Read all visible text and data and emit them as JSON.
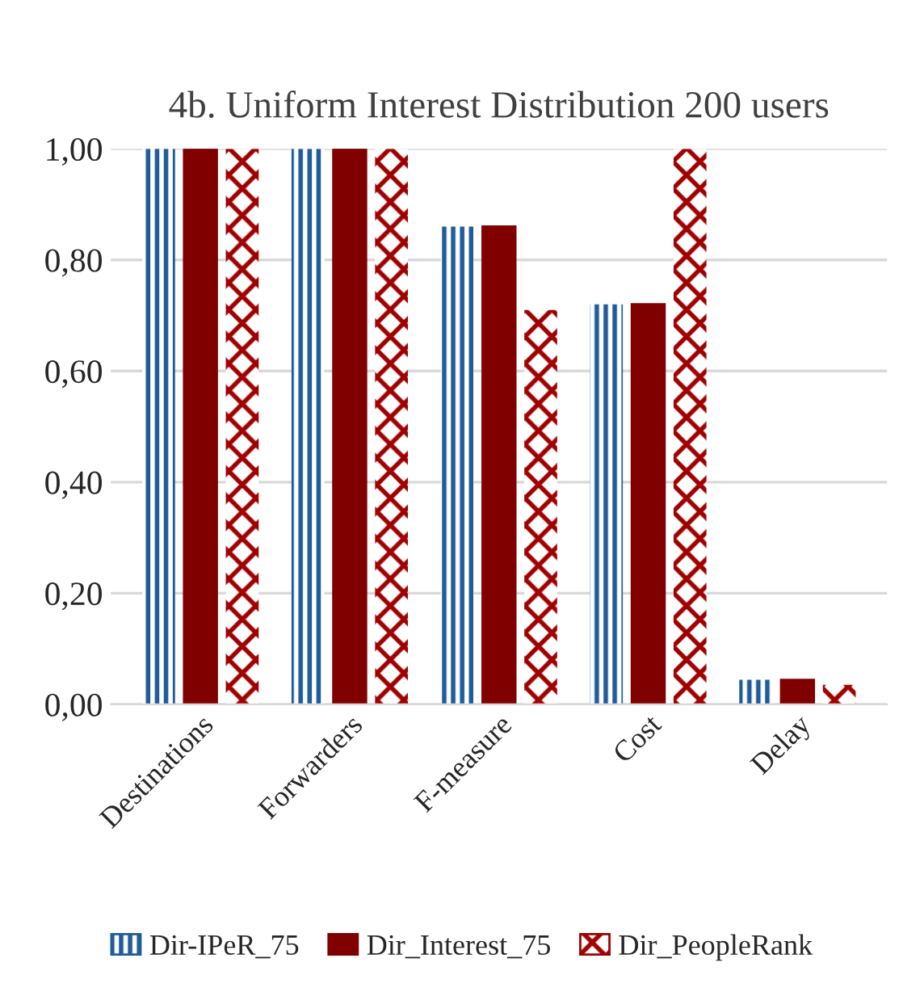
{
  "chart_data": {
    "type": "bar",
    "title": "4b. Uniform Interest Distribution 200 users",
    "categories": [
      "Destinations",
      "Forwarders",
      "F-measure",
      "Cost",
      "Delay"
    ],
    "series": [
      {
        "name": "Dir-IPeR_75",
        "color": "#1f5c99",
        "values": [
          1.0,
          1.0,
          0.86,
          0.72,
          0.044
        ]
      },
      {
        "name": "Dir_Interest_75",
        "color": "#800000",
        "values": [
          1.0,
          1.0,
          0.86,
          0.72,
          0.044
        ]
      },
      {
        "name": "Dir_PeopleRank",
        "color": "#a00000",
        "values": [
          1.0,
          1.0,
          0.71,
          1.0,
          0.035
        ]
      }
    ],
    "ylim": [
      0,
      1.0
    ],
    "yticks": [
      {
        "value": 0,
        "label": "0,00"
      },
      {
        "value": 0.2,
        "label": "0,20"
      },
      {
        "value": 0.4,
        "label": "0,40"
      },
      {
        "value": 0.6,
        "label": "0,60"
      },
      {
        "value": 0.8,
        "label": "0,80"
      },
      {
        "value": 1.0,
        "label": "1,00"
      }
    ],
    "grid": "y",
    "legend": "bottom"
  }
}
